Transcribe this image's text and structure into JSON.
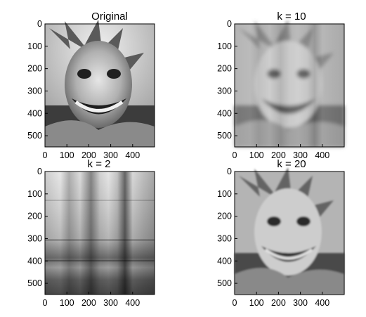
{
  "chart_data": [
    {
      "type": "heatmap",
      "title": "Original",
      "content": "grayscale photograph of a smiling clown face with a jester hat",
      "xlim": [
        0,
        500
      ],
      "ylim": [
        550,
        0
      ],
      "xticks": [
        0,
        100,
        200,
        300,
        400
      ],
      "yticks": [
        0,
        100,
        200,
        300,
        400,
        500
      ],
      "grid": false
    },
    {
      "type": "heatmap",
      "title": "k = 10",
      "content": "rank-10 SVD approximation of the clown image",
      "xlim": [
        0,
        500
      ],
      "ylim": [
        550,
        0
      ],
      "xticks": [
        0,
        100,
        200,
        300,
        400
      ],
      "yticks": [
        0,
        100,
        200,
        300,
        400,
        500
      ],
      "grid": false
    },
    {
      "type": "heatmap",
      "title": "k = 2",
      "content": "rank-2 SVD approximation of the clown image",
      "xlim": [
        0,
        500
      ],
      "ylim": [
        550,
        0
      ],
      "xticks": [
        0,
        100,
        200,
        300,
        400
      ],
      "yticks": [
        0,
        100,
        200,
        300,
        400,
        500
      ],
      "grid": false
    },
    {
      "type": "heatmap",
      "title": "k = 20",
      "content": "rank-20 SVD approximation of the clown image",
      "xlim": [
        0,
        500
      ],
      "ylim": [
        550,
        0
      ],
      "xticks": [
        0,
        100,
        200,
        300,
        400
      ],
      "yticks": [
        0,
        100,
        200,
        300,
        400,
        500
      ],
      "grid": false
    }
  ]
}
